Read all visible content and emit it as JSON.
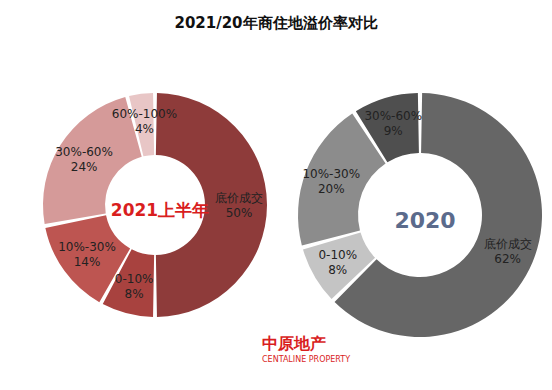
{
  "chart_data": {
    "type": "pie",
    "title": "2021/20年商住地溢价率对比",
    "data_labels": true,
    "series": [
      {
        "name": "2021上半年",
        "categories": [
          "底价成交",
          "0-10%",
          "10%-30%",
          "30%-60%",
          "60%-100%"
        ],
        "values": [
          50,
          8,
          14,
          24,
          4
        ],
        "value_labels": [
          "50%",
          "8%",
          "14%",
          "24%",
          "4%"
        ],
        "colors": [
          "#8e3b3a",
          "#a8423f",
          "#bd5551",
          "#d59a99",
          "#e8c6c6"
        ]
      },
      {
        "name": "2020",
        "categories": [
          "底价成交",
          "0-10%",
          "10%-30%",
          "30%-60%"
        ],
        "values": [
          62,
          8,
          20,
          9
        ],
        "value_labels": [
          "62%",
          "8%",
          "20%",
          "9%"
        ],
        "colors": [
          "#666666",
          "#c4c4c4",
          "#8c8c8c",
          "#4f4f4f"
        ]
      }
    ],
    "annotations": [
      "中原地产",
      "CENTALINE PROPERTY"
    ]
  }
}
